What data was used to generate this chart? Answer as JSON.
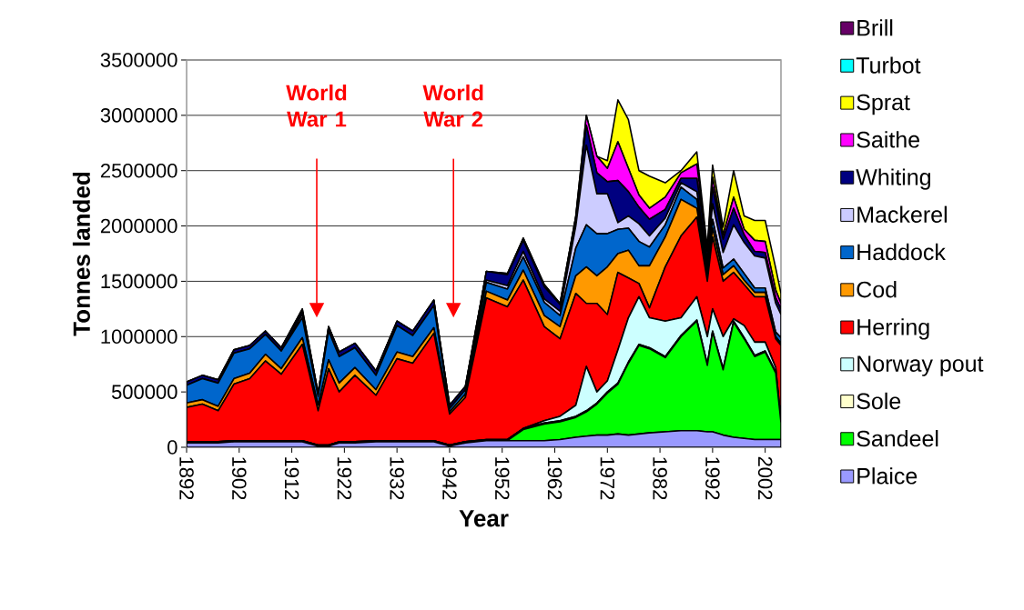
{
  "chart_data": {
    "type": "area",
    "stacked": true,
    "xlabel": "Year",
    "ylabel": "Tonnes landed",
    "x": [
      1892,
      1895,
      1898,
      1901,
      1904,
      1907,
      1910,
      1914,
      1917,
      1919,
      1921,
      1924,
      1928,
      1932,
      1935,
      1939,
      1942,
      1945,
      1949,
      1953,
      1956,
      1960,
      1963,
      1966,
      1968,
      1970,
      1972,
      1974,
      1976,
      1978,
      1980,
      1983,
      1986,
      1989,
      1991,
      1992,
      1994,
      1996,
      1998,
      2000,
      2002,
      2004,
      2005
    ],
    "xlim": [
      1892,
      2005
    ],
    "ylim": [
      0,
      3500000
    ],
    "xticks": [
      1892,
      1902,
      1912,
      1922,
      1932,
      1942,
      1952,
      1962,
      1972,
      1982,
      1992,
      2002
    ],
    "yticks": [
      0,
      500000,
      1000000,
      1500000,
      2000000,
      2500000,
      3000000,
      3500000
    ],
    "grid": "y",
    "legend": "right",
    "annotations": [
      "World War 1",
      "World War 2"
    ],
    "series": [
      {
        "name": "Plaice",
        "color": "#9999ff",
        "values": [
          40000,
          40000,
          40000,
          50000,
          50000,
          50000,
          50000,
          50000,
          10000,
          10000,
          40000,
          40000,
          50000,
          50000,
          50000,
          50000,
          10000,
          40000,
          60000,
          60000,
          60000,
          60000,
          70000,
          90000,
          100000,
          110000,
          110000,
          120000,
          110000,
          120000,
          130000,
          140000,
          150000,
          150000,
          140000,
          140000,
          110000,
          90000,
          80000,
          70000,
          70000,
          70000,
          70000
        ]
      },
      {
        "name": "Sandeel",
        "color": "#00ff00",
        "values": [
          0,
          0,
          0,
          0,
          0,
          0,
          0,
          0,
          0,
          0,
          0,
          0,
          0,
          0,
          0,
          0,
          0,
          0,
          0,
          0,
          100000,
          150000,
          160000,
          180000,
          220000,
          280000,
          380000,
          450000,
          650000,
          800000,
          760000,
          670000,
          850000,
          990000,
          600000,
          900000,
          590000,
          1040000,
          900000,
          750000,
          790000,
          600000,
          150000
        ]
      },
      {
        "name": "Sole",
        "color": "#ffffcc",
        "values": [
          10000,
          10000,
          10000,
          10000,
          10000,
          10000,
          10000,
          10000,
          10000,
          10000,
          10000,
          10000,
          10000,
          10000,
          10000,
          10000,
          10000,
          10000,
          10000,
          10000,
          10000,
          10000,
          10000,
          10000,
          10000,
          10000,
          10000,
          10000,
          10000,
          10000,
          10000,
          10000,
          10000,
          10000,
          10000,
          10000,
          10000,
          10000,
          10000,
          10000,
          10000,
          10000,
          10000
        ]
      },
      {
        "name": "Norway pout",
        "color": "#ccffff",
        "values": [
          0,
          0,
          0,
          0,
          0,
          0,
          0,
          0,
          0,
          0,
          0,
          0,
          0,
          0,
          0,
          0,
          0,
          0,
          0,
          0,
          0,
          20000,
          40000,
          100000,
          400000,
          100000,
          100000,
          300000,
          400000,
          430000,
          270000,
          320000,
          160000,
          210000,
          250000,
          200000,
          290000,
          20000,
          110000,
          120000,
          80000,
          40000,
          10000
        ]
      },
      {
        "name": "Herring",
        "color": "#ff0000",
        "values": [
          310000,
          340000,
          280000,
          510000,
          560000,
          720000,
          600000,
          870000,
          310000,
          690000,
          450000,
          600000,
          410000,
          740000,
          700000,
          970000,
          280000,
          400000,
          1280000,
          1200000,
          1340000,
          850000,
          700000,
          1010000,
          570000,
          800000,
          600000,
          700000,
          360000,
          120000,
          90000,
          490000,
          740000,
          720000,
          500000,
          650000,
          500000,
          420000,
          370000,
          410000,
          410000,
          260000,
          680000
        ]
      },
      {
        "name": "Cod",
        "color": "#ff9900",
        "values": [
          40000,
          40000,
          40000,
          50000,
          50000,
          60000,
          50000,
          60000,
          50000,
          80000,
          80000,
          70000,
          50000,
          60000,
          60000,
          50000,
          20000,
          30000,
          60000,
          60000,
          90000,
          100000,
          110000,
          160000,
          330000,
          250000,
          430000,
          170000,
          250000,
          160000,
          380000,
          270000,
          330000,
          80000,
          70000,
          80000,
          60000,
          60000,
          40000,
          40000,
          40000,
          20000,
          20000
        ]
      },
      {
        "name": "Haddock",
        "color": "#0066cc",
        "values": [
          160000,
          190000,
          210000,
          230000,
          220000,
          180000,
          160000,
          180000,
          80000,
          260000,
          240000,
          180000,
          130000,
          240000,
          190000,
          200000,
          30000,
          40000,
          80000,
          100000,
          120000,
          120000,
          100000,
          250000,
          380000,
          380000,
          300000,
          220000,
          200000,
          220000,
          170000,
          110000,
          110000,
          80000,
          60000,
          80000,
          60000,
          60000,
          60000,
          40000,
          40000,
          40000,
          50000
        ]
      },
      {
        "name": "Mackerel",
        "color": "#ccccff",
        "values": [
          0,
          0,
          0,
          0,
          0,
          0,
          0,
          30000,
          0,
          0,
          0,
          0,
          0,
          0,
          0,
          0,
          0,
          0,
          20000,
          30000,
          50000,
          30000,
          40000,
          200000,
          720000,
          360000,
          360000,
          60000,
          110000,
          160000,
          100000,
          60000,
          40000,
          70000,
          60000,
          140000,
          140000,
          310000,
          280000,
          290000,
          270000,
          260000,
          210000
        ]
      },
      {
        "name": "Whiting",
        "color": "#000080",
        "values": [
          30000,
          30000,
          30000,
          30000,
          30000,
          30000,
          30000,
          30000,
          30000,
          40000,
          40000,
          40000,
          40000,
          40000,
          40000,
          50000,
          30000,
          30000,
          80000,
          100000,
          100000,
          110000,
          60000,
          80000,
          180000,
          190000,
          110000,
          380000,
          220000,
          150000,
          150000,
          80000,
          40000,
          120000,
          80000,
          150000,
          120000,
          150000,
          70000,
          40000,
          50000,
          50000,
          50000
        ]
      },
      {
        "name": "Saithe",
        "color": "#ff00ff",
        "values": [
          0,
          0,
          0,
          0,
          0,
          0,
          0,
          20000,
          0,
          0,
          0,
          0,
          0,
          0,
          0,
          0,
          0,
          0,
          0,
          10000,
          20000,
          20000,
          10000,
          10000,
          90000,
          150000,
          120000,
          350000,
          210000,
          110000,
          100000,
          110000,
          50000,
          130000,
          20000,
          90000,
          40000,
          100000,
          50000,
          100000,
          100000,
          70000,
          50000
        ]
      },
      {
        "name": "Sprat",
        "color": "#ffff00",
        "values": [
          0,
          0,
          0,
          0,
          0,
          0,
          0,
          0,
          0,
          0,
          0,
          0,
          0,
          0,
          0,
          0,
          0,
          0,
          0,
          0,
          0,
          0,
          0,
          0,
          0,
          0,
          70000,
          380000,
          440000,
          220000,
          290000,
          130000,
          20000,
          110000,
          10000,
          110000,
          70000,
          240000,
          120000,
          180000,
          190000,
          200000,
          90000
        ]
      },
      {
        "name": "Turbot",
        "color": "#00ffff",
        "values": [
          null,
          null,
          null,
          null,
          null,
          null,
          null,
          null,
          null,
          null,
          null,
          null,
          null,
          null,
          null,
          null,
          null,
          null,
          null,
          null,
          null,
          null,
          null,
          null,
          null,
          null,
          null,
          null,
          null,
          null,
          null,
          null,
          null,
          null,
          null,
          null,
          null,
          null,
          null,
          null,
          null,
          null,
          null
        ]
      },
      {
        "name": "Brill",
        "color": "#660066",
        "values": [
          null,
          null,
          null,
          null,
          null,
          null,
          null,
          null,
          null,
          null,
          null,
          null,
          null,
          null,
          null,
          null,
          null,
          null,
          null,
          null,
          null,
          null,
          null,
          null,
          null,
          null,
          null,
          null,
          null,
          null,
          null,
          null,
          null,
          null,
          null,
          null,
          null,
          null,
          null,
          null,
          null,
          null,
          null
        ]
      }
    ]
  }
}
